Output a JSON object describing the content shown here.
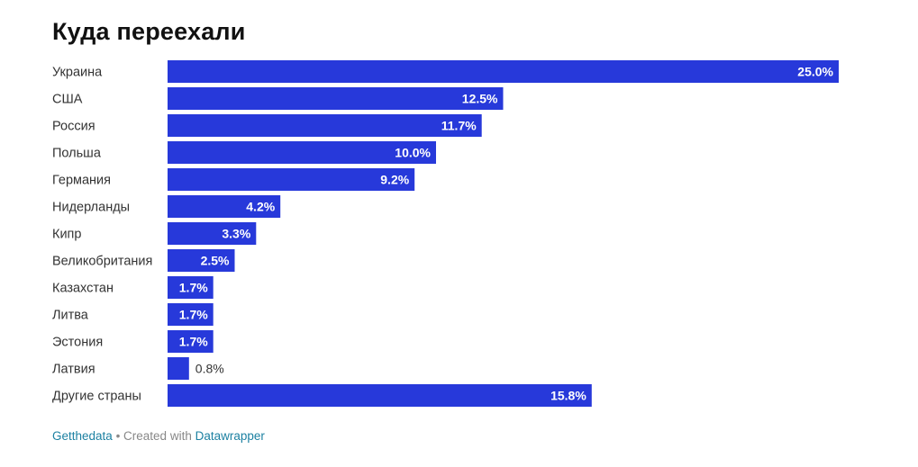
{
  "chart_data": {
    "type": "bar",
    "orientation": "horizontal",
    "title": "Куда переехали",
    "categories": [
      "Украина",
      "США",
      "Россия",
      "Польша",
      "Германия",
      "Нидерланды",
      "Кипр",
      "Великобритания",
      "Казахстан",
      "Литва",
      "Эстония",
      "Латвия",
      "Другие страны"
    ],
    "values": [
      25.0,
      12.5,
      11.7,
      10.0,
      9.2,
      4.2,
      3.3,
      2.5,
      1.7,
      1.7,
      1.7,
      0.8,
      15.8
    ],
    "value_labels": [
      "25.0%",
      "12.5%",
      "11.7%",
      "10.0%",
      "9.2%",
      "4.2%",
      "3.3%",
      "2.5%",
      "1.7%",
      "1.7%",
      "1.7%",
      "0.8%",
      "15.8%"
    ],
    "xlim": [
      0,
      25
    ],
    "bar_color": "#2739da",
    "grid": false,
    "legend": "none"
  },
  "footer": {
    "source": "Getthedata",
    "separator": " • Created with ",
    "tool": "Datawrapper"
  },
  "colors": {
    "link": "#1d81a2",
    "label_inside": "#ffffff",
    "label_outside": "#333333"
  }
}
